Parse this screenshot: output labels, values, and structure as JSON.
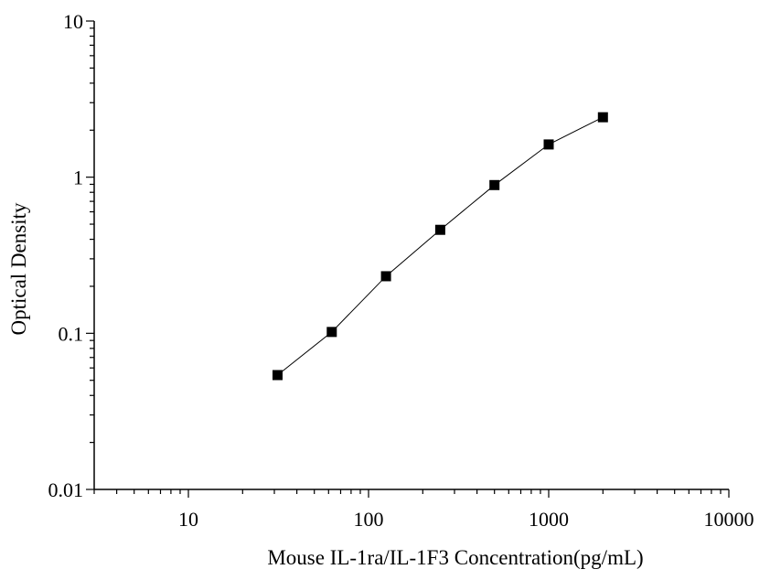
{
  "chart_data": {
    "type": "scatter",
    "xlabel": "Mouse IL-1ra/IL-1F3 Concentration(pg/mL)",
    "ylabel": "Optical Density",
    "x_scale": "log",
    "y_scale": "log",
    "xlim": [
      3,
      10000
    ],
    "ylim": [
      0.01,
      10
    ],
    "x_ticks": [
      {
        "value": 10,
        "label": "10"
      },
      {
        "value": 100,
        "label": "100"
      },
      {
        "value": 1000,
        "label": "1000"
      },
      {
        "value": 10000,
        "label": "10000"
      }
    ],
    "y_ticks": [
      {
        "value": 0.01,
        "label": "0.01"
      },
      {
        "value": 0.1,
        "label": "0.1"
      },
      {
        "value": 1,
        "label": "1"
      },
      {
        "value": 10,
        "label": "10"
      }
    ],
    "grid": false,
    "marker": "square",
    "line_color": "#000000",
    "marker_color": "#000000",
    "series": [
      {
        "x": [
          31.25,
          62.5,
          125,
          250,
          500,
          1000,
          2000
        ],
        "y": [
          0.054,
          0.102,
          0.232,
          0.46,
          0.89,
          1.62,
          2.42
        ]
      }
    ]
  }
}
